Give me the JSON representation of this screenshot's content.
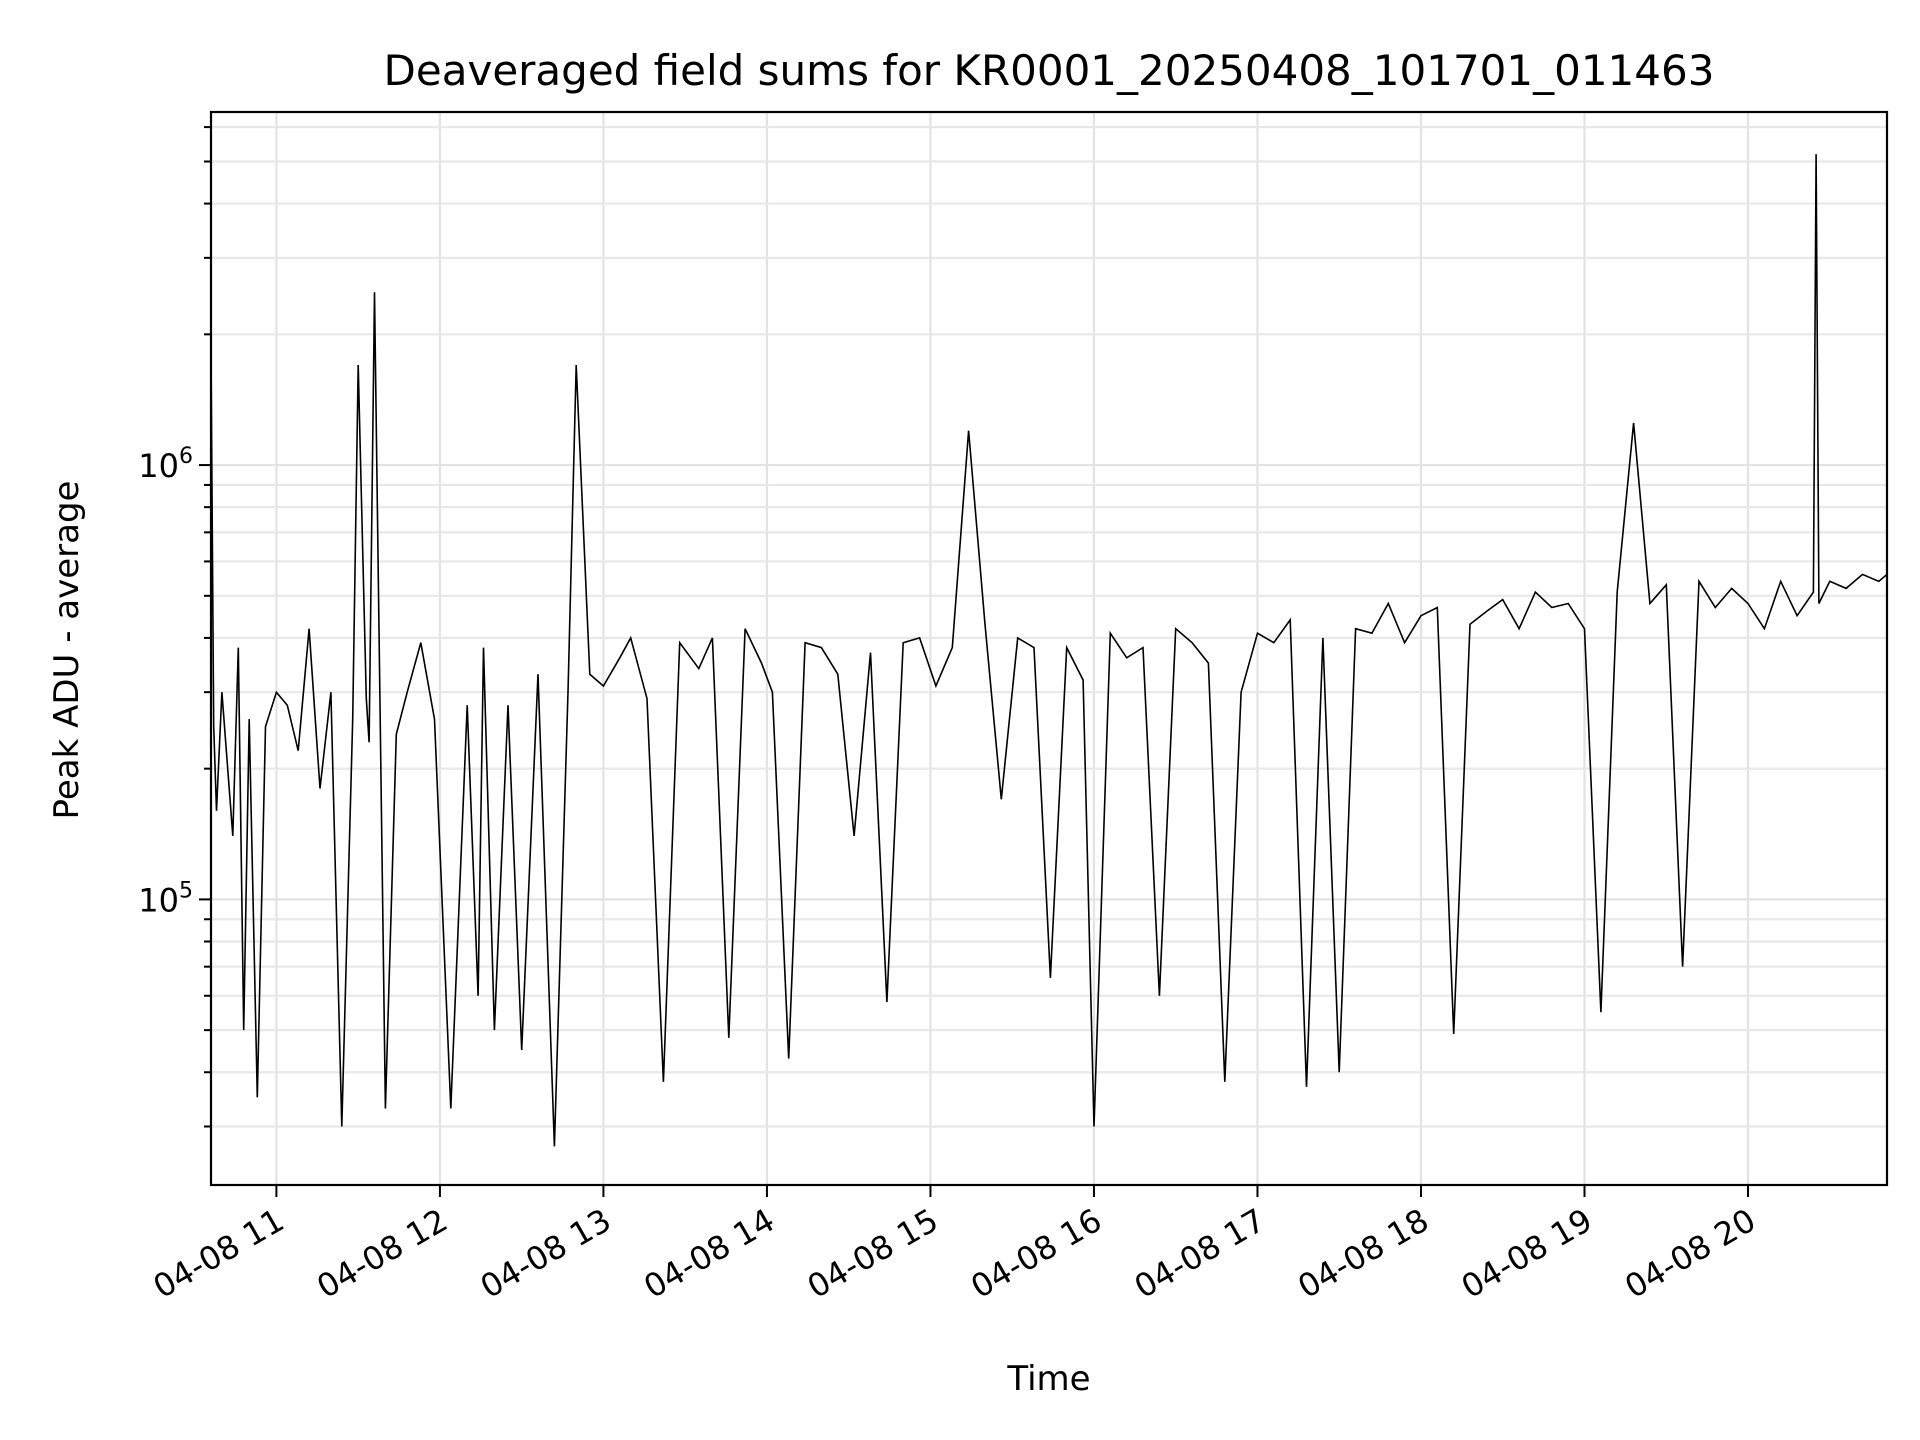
{
  "chart_data": {
    "type": "line",
    "title": "Deaveraged field sums for KR0001_20250408_101701_011463",
    "xlabel": "Time",
    "ylabel": "Peak ADU - average",
    "yscale": "log",
    "ylim": [
      22000,
      6500000
    ],
    "xlim": [
      "2025-04-08 10:36",
      "2025-04-08 20:51"
    ],
    "x_ticks": [
      "2025-04-08 11:00",
      "2025-04-08 12:00",
      "2025-04-08 13:00",
      "2025-04-08 14:00",
      "2025-04-08 15:00",
      "2025-04-08 16:00",
      "2025-04-08 17:00",
      "2025-04-08 18:00",
      "2025-04-08 19:00",
      "2025-04-08 20:00"
    ],
    "x_tick_labels": [
      "04-08 11",
      "04-08 12",
      "04-08 13",
      "04-08 14",
      "04-08 15",
      "04-08 16",
      "04-08 17",
      "04-08 18",
      "04-08 19",
      "04-08 20"
    ],
    "y_ticks": [
      100000,
      1000000
    ],
    "y_tick_labels": [
      {
        "base": "10",
        "exp": "5"
      },
      {
        "base": "10",
        "exp": "6"
      }
    ],
    "grid": true,
    "line_color": "#000000",
    "series": [
      {
        "x": [
          "2025-04-08 10:36",
          "2025-04-08 10:37",
          "2025-04-08 10:38",
          "2025-04-08 10:40",
          "2025-04-08 10:44",
          "2025-04-08 10:46",
          "2025-04-08 10:48",
          "2025-04-08 10:50",
          "2025-04-08 10:53",
          "2025-04-08 10:56",
          "2025-04-08 11:00",
          "2025-04-08 11:04",
          "2025-04-08 11:08",
          "2025-04-08 11:12",
          "2025-04-08 11:16",
          "2025-04-08 11:20",
          "2025-04-08 11:24",
          "2025-04-08 11:28",
          "2025-04-08 11:30",
          "2025-04-08 11:33",
          "2025-04-08 11:34",
          "2025-04-08 11:36",
          "2025-04-08 11:40",
          "2025-04-08 11:44",
          "2025-04-08 11:48",
          "2025-04-08 11:53",
          "2025-04-08 11:58",
          "2025-04-08 12:04",
          "2025-04-08 12:10",
          "2025-04-08 12:14",
          "2025-04-08 12:16",
          "2025-04-08 12:20",
          "2025-04-08 12:25",
          "2025-04-08 12:30",
          "2025-04-08 12:36",
          "2025-04-08 12:42",
          "2025-04-08 12:47",
          "2025-04-08 12:50",
          "2025-04-08 12:55",
          "2025-04-08 13:00",
          "2025-04-08 13:06",
          "2025-04-08 13:10",
          "2025-04-08 13:16",
          "2025-04-08 13:22",
          "2025-04-08 13:28",
          "2025-04-08 13:35",
          "2025-04-08 13:40",
          "2025-04-08 13:46",
          "2025-04-08 13:52",
          "2025-04-08 13:58",
          "2025-04-08 14:02",
          "2025-04-08 14:08",
          "2025-04-08 14:14",
          "2025-04-08 14:20",
          "2025-04-08 14:26",
          "2025-04-08 14:32",
          "2025-04-08 14:38",
          "2025-04-08 14:44",
          "2025-04-08 14:50",
          "2025-04-08 14:56",
          "2025-04-08 15:02",
          "2025-04-08 15:08",
          "2025-04-08 15:14",
          "2025-04-08 15:20",
          "2025-04-08 15:26",
          "2025-04-08 15:32",
          "2025-04-08 15:38",
          "2025-04-08 15:44",
          "2025-04-08 15:50",
          "2025-04-08 15:56",
          "2025-04-08 16:00",
          "2025-04-08 16:06",
          "2025-04-08 16:12",
          "2025-04-08 16:18",
          "2025-04-08 16:24",
          "2025-04-08 16:30",
          "2025-04-08 16:36",
          "2025-04-08 16:42",
          "2025-04-08 16:48",
          "2025-04-08 16:54",
          "2025-04-08 17:00",
          "2025-04-08 17:06",
          "2025-04-08 17:12",
          "2025-04-08 17:18",
          "2025-04-08 17:24",
          "2025-04-08 17:30",
          "2025-04-08 17:36",
          "2025-04-08 17:42",
          "2025-04-08 17:48",
          "2025-04-08 17:54",
          "2025-04-08 18:00",
          "2025-04-08 18:06",
          "2025-04-08 18:12",
          "2025-04-08 18:18",
          "2025-04-08 18:24",
          "2025-04-08 18:30",
          "2025-04-08 18:36",
          "2025-04-08 18:42",
          "2025-04-08 18:48",
          "2025-04-08 18:54",
          "2025-04-08 19:00",
          "2025-04-08 19:06",
          "2025-04-08 19:12",
          "2025-04-08 19:18",
          "2025-04-08 19:24",
          "2025-04-08 19:30",
          "2025-04-08 19:36",
          "2025-04-08 19:42",
          "2025-04-08 19:48",
          "2025-04-08 19:54",
          "2025-04-08 20:00",
          "2025-04-08 20:06",
          "2025-04-08 20:12",
          "2025-04-08 20:18",
          "2025-04-08 20:24",
          "2025-04-08 20:25",
          "2025-04-08 20:26",
          "2025-04-08 20:30",
          "2025-04-08 20:36",
          "2025-04-08 20:42",
          "2025-04-08 20:48",
          "2025-04-08 20:51"
        ],
        "y": [
          1850000,
          250000,
          160000,
          300000,
          140000,
          380000,
          50000,
          260000,
          35000,
          250000,
          300000,
          280000,
          220000,
          420000,
          180000,
          300000,
          30000,
          260000,
          1700000,
          290000,
          230000,
          2500000,
          33000,
          240000,
          300000,
          390000,
          260000,
          33000,
          280000,
          60000,
          380000,
          50000,
          280000,
          45000,
          330000,
          27000,
          300000,
          1700000,
          330000,
          310000,
          360000,
          400000,
          290000,
          38000,
          390000,
          340000,
          400000,
          48000,
          420000,
          350000,
          300000,
          43000,
          390000,
          380000,
          330000,
          140000,
          370000,
          58000,
          390000,
          400000,
          310000,
          380000,
          1200000,
          430000,
          170000,
          400000,
          380000,
          66000,
          380000,
          320000,
          30000,
          410000,
          360000,
          380000,
          60000,
          420000,
          390000,
          350000,
          38000,
          300000,
          410000,
          390000,
          440000,
          37000,
          400000,
          40000,
          420000,
          410000,
          480000,
          390000,
          450000,
          470000,
          49000,
          430000,
          460000,
          490000,
          420000,
          510000,
          470000,
          480000,
          420000,
          55000,
          510000,
          1250000,
          480000,
          530000,
          70000,
          540000,
          470000,
          520000,
          480000,
          420000,
          540000,
          450000,
          510000,
          5200000,
          480000,
          540000,
          520000,
          560000,
          540000,
          560000
        ]
      }
    ]
  }
}
